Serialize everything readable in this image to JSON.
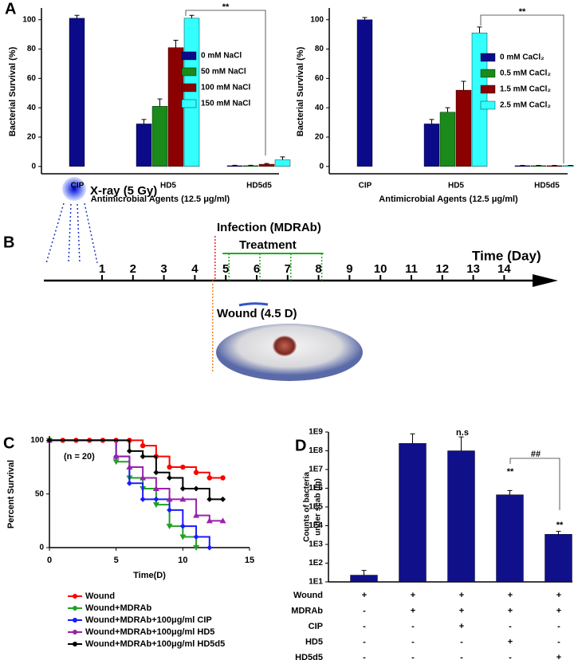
{
  "chart_data": [
    {
      "type": "bar",
      "panel": "A",
      "ylabel": "Bacterial Survival (%)",
      "xlabel": "Antimicrobial Agents (12.5 μg/ml)",
      "categories": [
        "CIP",
        "HD5",
        "HD5d5"
      ],
      "series": [
        {
          "name": "0 mM NaCl",
          "color": "#0b0b8a",
          "values": [
            101,
            29,
            0.5
          ],
          "errors": [
            2,
            3,
            0.3
          ]
        },
        {
          "name": "50 mM NaCl",
          "color": "#1a8a1a",
          "values": [
            null,
            41,
            0.5
          ],
          "errors": [
            null,
            5,
            0.3
          ]
        },
        {
          "name": "100 mM NaCl",
          "color": "#8b0000",
          "values": [
            null,
            81,
            1.5
          ],
          "errors": [
            null,
            5,
            0.5
          ]
        },
        {
          "name": "150 mM NaCl",
          "color": "#33ffff",
          "values": [
            null,
            101,
            4.5
          ],
          "errors": [
            null,
            2,
            2
          ]
        }
      ],
      "ylim": [
        -5,
        108
      ],
      "yticks": [
        0,
        20,
        40,
        60,
        80,
        100
      ],
      "annotations": [
        "**"
      ]
    },
    {
      "type": "bar",
      "ylabel": "Bacterial Survival (%)",
      "xlabel": "Antimicrobial Agents (12.5 μg/ml)",
      "categories": [
        "CIP",
        "HD5",
        "HD5d5"
      ],
      "series": [
        {
          "name": "0 mM CaCl₂",
          "color": "#0b0b8a",
          "values": [
            100,
            29,
            0.5
          ],
          "errors": [
            1.5,
            3,
            0.2
          ]
        },
        {
          "name": "0.5 mM CaCl₂",
          "color": "#1a8a1a",
          "values": [
            null,
            37,
            0.5
          ],
          "errors": [
            null,
            3,
            0.2
          ]
        },
        {
          "name": "1.5 mM CaCl₂",
          "color": "#8b0000",
          "values": [
            null,
            52,
            0.5
          ],
          "errors": [
            null,
            6,
            0.2
          ]
        },
        {
          "name": "2.5 mM CaCl₂",
          "color": "#33ffff",
          "values": [
            null,
            91,
            0.5
          ],
          "errors": [
            null,
            4,
            0.2
          ]
        }
      ],
      "ylim": [
        -5,
        108
      ],
      "yticks": [
        0,
        20,
        40,
        60,
        80,
        100
      ],
      "annotations": [
        "**"
      ]
    },
    {
      "type": "line",
      "step": true,
      "panel": "C",
      "ylabel": "Percent Survival",
      "xlabel": "Time(D)",
      "annotations": [
        "(n = 20)"
      ],
      "xlim": [
        0,
        15
      ],
      "xticks": [
        0,
        5,
        10,
        15
      ],
      "ylim": [
        0,
        104
      ],
      "yticks": [
        0,
        50,
        100
      ],
      "series": [
        {
          "name": "Wound",
          "color": "#ff0000",
          "x": [
            0,
            1,
            2,
            3,
            4,
            5,
            6,
            7,
            8,
            9,
            10,
            11,
            12,
            13
          ],
          "values": [
            100,
            100,
            100,
            100,
            100,
            100,
            100,
            95,
            85,
            75,
            75,
            70,
            65,
            65
          ]
        },
        {
          "name": "Wound+MDRAb",
          "color": "#22a022",
          "x": [
            0,
            5,
            6,
            7,
            8,
            9,
            10,
            11
          ],
          "values": [
            100,
            80,
            65,
            55,
            40,
            20,
            10,
            0
          ]
        },
        {
          "name": "Wound+MDRAb+100μg/ml CIP",
          "color": "#1a1aff",
          "x": [
            0,
            5,
            6,
            7,
            8,
            9,
            10,
            11,
            12
          ],
          "values": [
            100,
            85,
            60,
            45,
            45,
            35,
            20,
            10,
            0
          ]
        },
        {
          "name": "Wound+MDRAb+100μg/ml HD5",
          "color": "#9922aa",
          "x": [
            0,
            5,
            6,
            7,
            8,
            9,
            10,
            11,
            12,
            13
          ],
          "values": [
            100,
            85,
            75,
            65,
            55,
            45,
            45,
            30,
            25,
            25
          ]
        },
        {
          "name": "Wound+MDRAb+100μg/ml HD5d5",
          "color": "#000000",
          "x": [
            0,
            6,
            7,
            8,
            9,
            10,
            11,
            12,
            13
          ],
          "values": [
            100,
            90,
            85,
            70,
            65,
            55,
            55,
            45,
            45
          ]
        }
      ]
    },
    {
      "type": "bar",
      "log_y": true,
      "panel": "D",
      "ylabel": [
        "Counts of bacteria",
        "under scab (/g)"
      ],
      "categories": [
        null,
        null,
        null,
        null,
        null
      ],
      "series": [
        {
          "color": "#10108a",
          "values": [
            23,
            250000000,
            100000000,
            450000,
            3500
          ],
          "errors": [
            18,
            550000000,
            450000000,
            300000,
            1500
          ]
        }
      ],
      "ylim": [
        10,
        1000000000
      ],
      "yticks": [
        {
          "value": 10,
          "label": "1E1"
        },
        {
          "value": 100,
          "label": "1E2"
        },
        {
          "value": 1000,
          "label": "1E3"
        },
        {
          "value": 10000,
          "label": "1E4"
        },
        {
          "value": 100000,
          "label": "1E5"
        },
        {
          "value": 1000000,
          "label": "1E6"
        },
        {
          "value": 10000000,
          "label": "1E7"
        },
        {
          "value": 100000000,
          "label": "1E8"
        },
        {
          "value": 1000000000,
          "label": "1E9"
        }
      ],
      "annotations": [
        "n.s",
        "**",
        "**",
        "##"
      ],
      "conditions": [
        {
          "label": "Wound",
          "marks": [
            "+",
            "+",
            "+",
            "+",
            "+"
          ]
        },
        {
          "label": "MDRAb",
          "marks": [
            "-",
            "+",
            "+",
            "+",
            "+"
          ]
        },
        {
          "label": "CIP",
          "marks": [
            "-",
            "-",
            "+",
            "-",
            "-"
          ]
        },
        {
          "label": "HD5",
          "marks": [
            "-",
            "-",
            "-",
            "+",
            "-"
          ]
        },
        {
          "label": "HD5d5",
          "marks": [
            "-",
            "-",
            "-",
            "-",
            "+"
          ]
        }
      ]
    }
  ],
  "timeline": {
    "panel": "B",
    "xray": "X-ray (5 Gy)",
    "infection": "Infection (MDRAb)",
    "treatment": "Treatment",
    "axis_title": "Time (Day)",
    "wound": "Wound (4.5 D)",
    "days": [
      1,
      2,
      3,
      4,
      5,
      6,
      7,
      8,
      9,
      10,
      11,
      12,
      13,
      14
    ],
    "infection_day": 4.5,
    "treatment_days": [
      5,
      6,
      7,
      8
    ]
  }
}
